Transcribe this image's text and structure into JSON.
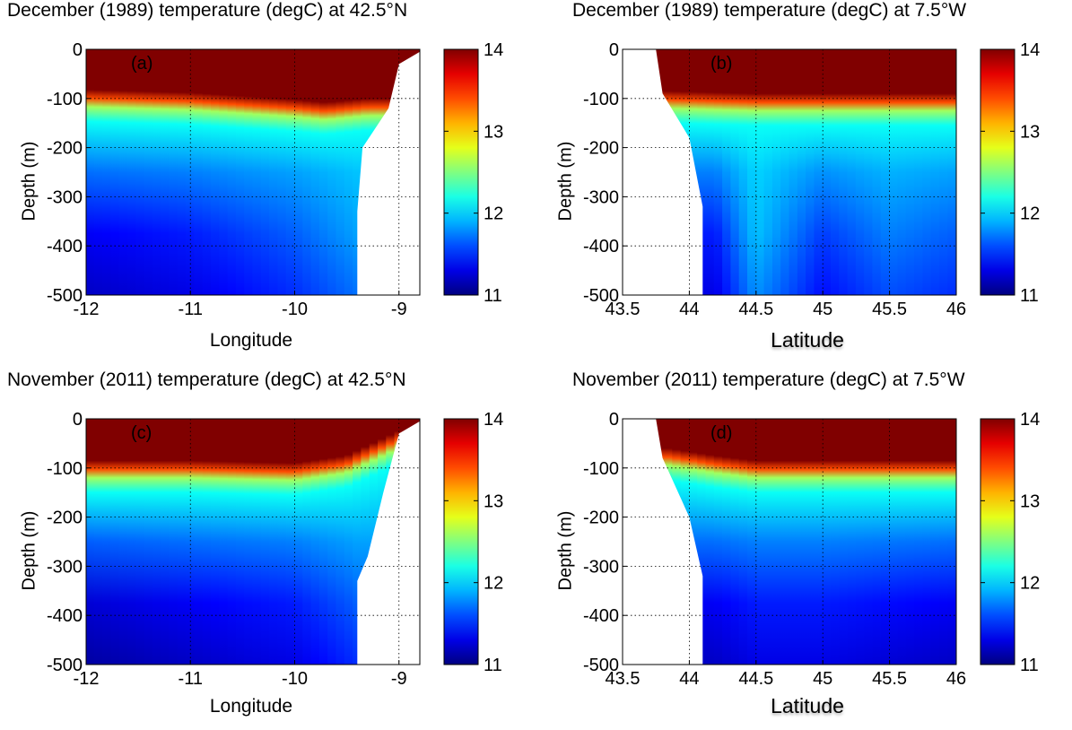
{
  "chart_data": [
    {
      "panel": "a",
      "type": "heatmap",
      "title": "December (1989) temperature (degC) at 42.5°N",
      "xlabel": "Longitude",
      "ylabel": "Depth (m)",
      "xlim": [
        -12,
        -8.8
      ],
      "ylim": [
        -500,
        0
      ],
      "xticks": [
        "-12",
        "-11",
        "-10",
        "-9"
      ],
      "yticks": [
        "0",
        "-100",
        "-200",
        "-300",
        "-400",
        "-500"
      ],
      "colorbar": {
        "min": 11,
        "max": 14,
        "ticks": [
          "14",
          "13",
          "12",
          "11"
        ],
        "colormap": "jet"
      },
      "grid": true,
      "mixed_layer_depth": [
        [
          -12,
          -92
        ],
        [
          -11,
          -98
        ],
        [
          -10,
          -112
        ],
        [
          -9.7,
          -118
        ],
        [
          -9.3,
          -110
        ]
      ],
      "deep_temperature": [
        [
          -12,
          11.2
        ],
        [
          -11,
          11.3
        ],
        [
          -10,
          11.5
        ],
        [
          -9.4,
          11.7
        ]
      ],
      "land_boundary": [
        [
          -8.8,
          -5
        ],
        [
          -9.0,
          -30
        ],
        [
          -9.1,
          -120
        ],
        [
          -9.35,
          -200
        ],
        [
          -9.4,
          -330
        ],
        [
          -9.4,
          -500
        ]
      ]
    },
    {
      "panel": "b",
      "type": "heatmap",
      "title": "December (1989) temperature (degC) at 7.5°W",
      "xlabel": "Latitude",
      "ylabel": "Depth (m)",
      "xlim": [
        43.5,
        46
      ],
      "ylim": [
        -500,
        0
      ],
      "xticks": [
        "43.5",
        "44",
        "44.5",
        "45",
        "45.5",
        "46"
      ],
      "yticks": [
        "0",
        "-100",
        "-200",
        "-300",
        "-400",
        "-500"
      ],
      "colorbar": {
        "min": 11,
        "max": 14,
        "ticks": [
          "14",
          "13",
          "12",
          "11"
        ],
        "colormap": "jet"
      },
      "grid": true,
      "mixed_layer_depth": [
        [
          43.85,
          -95
        ],
        [
          44.5,
          -100
        ],
        [
          45,
          -100
        ],
        [
          46,
          -100
        ]
      ],
      "deep_temperature": [
        [
          44.2,
          11.3
        ],
        [
          44.5,
          11.8
        ],
        [
          45,
          11.4
        ],
        [
          45.5,
          11.6
        ],
        [
          46,
          11.5
        ]
      ],
      "land_boundary": [
        [
          43.75,
          0
        ],
        [
          43.8,
          -90
        ],
        [
          44.0,
          -180
        ],
        [
          44.1,
          -320
        ],
        [
          44.1,
          -500
        ]
      ]
    },
    {
      "panel": "c",
      "type": "heatmap",
      "title": "November (2011) temperature (degC) at 42.5°N",
      "xlabel": "Longitude",
      "ylabel": "Depth (m)",
      "xlim": [
        -12,
        -8.8
      ],
      "ylim": [
        -500,
        0
      ],
      "xticks": [
        "-12",
        "-11",
        "-10",
        "-9"
      ],
      "yticks": [
        "0",
        "-100",
        "-200",
        "-300",
        "-400",
        "-500"
      ],
      "colorbar": {
        "min": 11,
        "max": 14,
        "ticks": [
          "14",
          "13",
          "12",
          "11"
        ],
        "colormap": "jet"
      },
      "grid": true,
      "mixed_layer_depth": [
        [
          -12,
          -95
        ],
        [
          -11,
          -95
        ],
        [
          -10,
          -100
        ],
        [
          -9.5,
          -85
        ],
        [
          -9,
          -35
        ]
      ],
      "deep_temperature": [
        [
          -12,
          11.1
        ],
        [
          -11,
          11.2
        ],
        [
          -10,
          11.3
        ],
        [
          -9.4,
          11.5
        ]
      ],
      "land_boundary": [
        [
          -8.8,
          -5
        ],
        [
          -9.0,
          -30
        ],
        [
          -9.15,
          -150
        ],
        [
          -9.3,
          -280
        ],
        [
          -9.4,
          -330
        ],
        [
          -9.4,
          -500
        ]
      ]
    },
    {
      "panel": "d",
      "type": "heatmap",
      "title": "November (2011) temperature (degC) at 7.5°W",
      "xlabel": "Latitude",
      "ylabel": "Depth (m)",
      "xlim": [
        43.5,
        46
      ],
      "ylim": [
        -500,
        0
      ],
      "xticks": [
        "43.5",
        "44",
        "44.5",
        "45",
        "45.5",
        "46"
      ],
      "yticks": [
        "0",
        "-100",
        "-200",
        "-300",
        "-400",
        "-500"
      ],
      "colorbar": {
        "min": 11,
        "max": 14,
        "ticks": [
          "14",
          "13",
          "12",
          "11"
        ],
        "colormap": "jet"
      },
      "grid": true,
      "mixed_layer_depth": [
        [
          43.85,
          -70
        ],
        [
          44.2,
          -85
        ],
        [
          44.5,
          -95
        ],
        [
          45,
          -95
        ],
        [
          46,
          -95
        ]
      ],
      "deep_temperature": [
        [
          44.2,
          11.2
        ],
        [
          44.5,
          11.3
        ],
        [
          45,
          11.3
        ],
        [
          45.5,
          11.25
        ],
        [
          46,
          11.2
        ]
      ],
      "land_boundary": [
        [
          43.75,
          0
        ],
        [
          43.8,
          -80
        ],
        [
          44.0,
          -200
        ],
        [
          44.1,
          -320
        ],
        [
          44.1,
          -500
        ]
      ]
    }
  ],
  "panels": [
    {
      "letter": "(a)"
    },
    {
      "letter": "(b)"
    },
    {
      "letter": "(c)"
    },
    {
      "letter": "(d)"
    }
  ]
}
